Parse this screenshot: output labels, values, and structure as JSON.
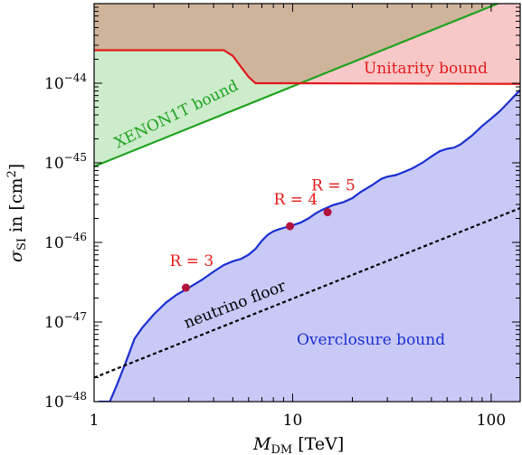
{
  "chart_data": {
    "type": "area",
    "xlabel_main": "M",
    "xlabel_sub": "DM",
    "xlabel_unit": " [TeV]",
    "ylabel_main": "σ",
    "ylabel_sub": "SI",
    "ylabel_unit_pre": " in [cm",
    "ylabel_unit_sup": "2",
    "ylabel_unit_post": "]",
    "x_scale": "log",
    "y_scale": "log",
    "xlim": [
      1,
      140
    ],
    "ylim": [
      1e-48,
      1e-43
    ],
    "x_ticks": [
      {
        "value": 1,
        "label": "1"
      },
      {
        "value": 10,
        "label": "10"
      },
      {
        "value": 100,
        "label": "100"
      }
    ],
    "y_ticks": [
      {
        "value": 1e-48,
        "base": "10",
        "exp": "−48"
      },
      {
        "value": 1e-47,
        "base": "10",
        "exp": "−47"
      },
      {
        "value": 1e-46,
        "base": "10",
        "exp": "−46"
      },
      {
        "value": 1e-45,
        "base": "10",
        "exp": "−45"
      },
      {
        "value": 1e-44,
        "base": "10",
        "exp": "−44"
      }
    ],
    "colors": {
      "overclosure_fill": "#c9c9f7",
      "overclosure_line": "#1a2fd0",
      "xenon_fill": "#cdeccc",
      "xenon_line": "#1fa31f",
      "unitarity_fill": "#f8c8c8",
      "unitarity_line": "#e31a1a",
      "overlap_fill": "#cfb49c",
      "neutrino_line": "#000000",
      "points": "#b3143c",
      "labels_red": "#e31a1a"
    },
    "series": [
      {
        "name": "Overclosure bound",
        "points": [
          [
            1.05,
            1e-48
          ],
          [
            1.2,
            1e-48
          ],
          [
            1.3,
            1.6e-48
          ],
          [
            1.45,
            3.2e-48
          ],
          [
            1.6,
            6.2e-48
          ],
          [
            1.75,
            8.5e-48
          ],
          [
            2.0,
            1.25e-47
          ],
          [
            2.3,
            1.75e-47
          ],
          [
            2.6,
            2.2e-47
          ],
          [
            3.0,
            2.7e-47
          ],
          [
            3.5,
            3.4e-47
          ],
          [
            4.0,
            4.3e-47
          ],
          [
            4.5,
            5.2e-47
          ],
          [
            5.0,
            5.8e-47
          ],
          [
            5.5,
            6.2e-47
          ],
          [
            6.0,
            7e-47
          ],
          [
            6.5,
            8.3e-47
          ],
          [
            7.0,
            1.05e-46
          ],
          [
            7.5,
            1.25e-46
          ],
          [
            8.0,
            1.38e-46
          ],
          [
            8.5,
            1.46e-46
          ],
          [
            9.0,
            1.52e-46
          ],
          [
            10.0,
            1.64e-46
          ],
          [
            11.0,
            1.78e-46
          ],
          [
            12.0,
            2e-46
          ],
          [
            13.0,
            2.3e-46
          ],
          [
            14.0,
            2.55e-46
          ],
          [
            15.0,
            2.75e-46
          ],
          [
            16.0,
            2.95e-46
          ],
          [
            18.0,
            3.2e-46
          ],
          [
            20.0,
            3.6e-46
          ],
          [
            22.0,
            4.3e-46
          ],
          [
            25.0,
            5.2e-46
          ],
          [
            28.0,
            6.3e-46
          ],
          [
            30.0,
            6.7e-46
          ],
          [
            33.0,
            7e-46
          ],
          [
            36.0,
            7.6e-46
          ],
          [
            40.0,
            8.5e-46
          ],
          [
            45.0,
            1e-45
          ],
          [
            50.0,
            1.2e-45
          ],
          [
            55.0,
            1.4e-45
          ],
          [
            60.0,
            1.5e-45
          ],
          [
            65.0,
            1.55e-45
          ],
          [
            70.0,
            1.7e-45
          ],
          [
            80.0,
            2.2e-45
          ],
          [
            90.0,
            2.9e-45
          ],
          [
            100.0,
            3.6e-45
          ],
          [
            110.0,
            4.4e-45
          ],
          [
            120.0,
            5.5e-45
          ],
          [
            130.0,
            6.8e-45
          ],
          [
            140.0,
            8.2e-45
          ]
        ]
      },
      {
        "name": "XENON1T bound",
        "points": [
          [
            1.0,
            9e-46
          ],
          [
            140.0,
            1.3e-43
          ]
        ]
      },
      {
        "name": "Unitarity bound",
        "points": [
          [
            1.0,
            2.6e-44
          ],
          [
            4.5,
            2.6e-44
          ],
          [
            5.0,
            2.2e-44
          ],
          [
            5.5,
            1.6e-44
          ],
          [
            6.0,
            1.2e-44
          ],
          [
            6.5,
            1e-44
          ],
          [
            10.0,
            1e-44
          ],
          [
            140.0,
            9.8e-45
          ]
        ]
      },
      {
        "name": "neutrino floor",
        "points": [
          [
            1.0,
            2e-48
          ],
          [
            140.0,
            2.7e-46
          ]
        ]
      }
    ],
    "highlight_points": [
      {
        "label": "R = 3",
        "x": 2.9,
        "y": 2.7e-47
      },
      {
        "label": "R = 4",
        "x": 9.7,
        "y": 1.6e-46
      },
      {
        "label": "R = 5",
        "x": 15.0,
        "y": 2.4e-46
      }
    ],
    "region_labels": {
      "overclosure": "Overclosure bound",
      "xenon": "XENON1T bound",
      "unitarity": "Unitarity bound",
      "neutrino": "neutrino floor"
    }
  }
}
